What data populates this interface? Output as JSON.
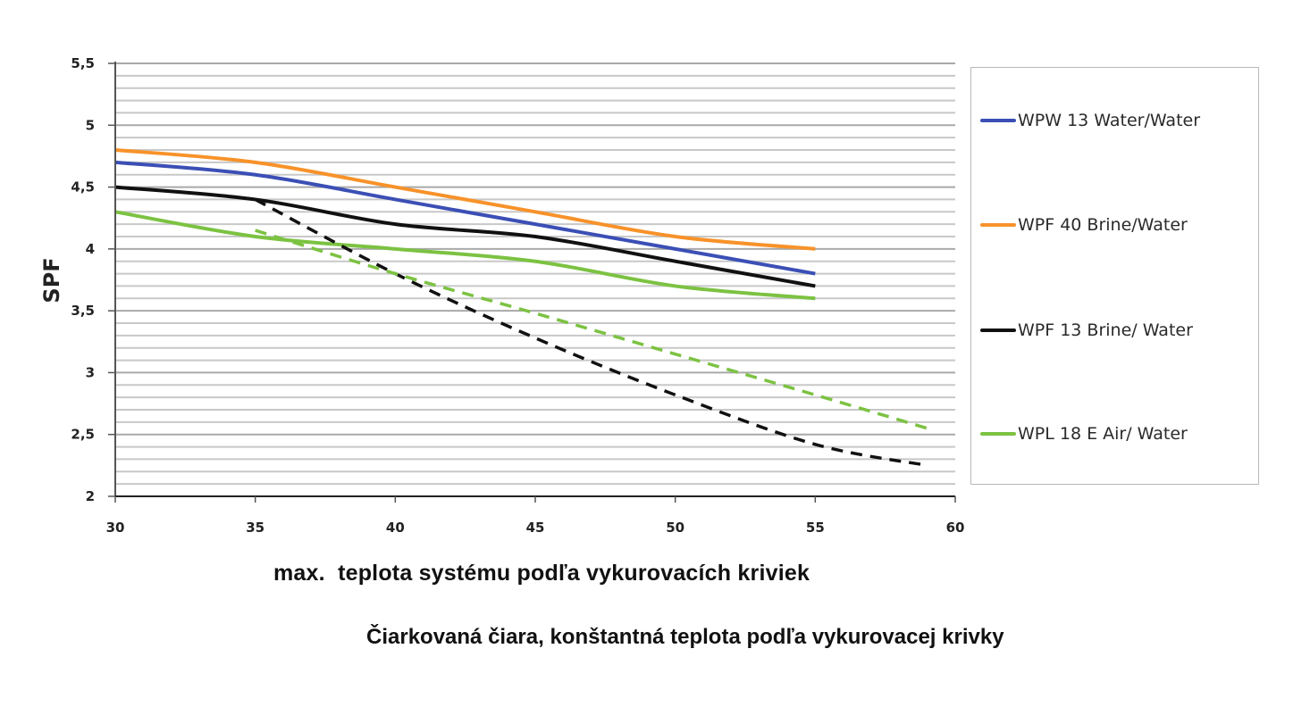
{
  "chart_data": {
    "type": "line",
    "title": "",
    "xlabel": "max.  teplota systému podľa vykurovacích kriviek",
    "ylabel": "SPF",
    "note": "Čiarkovaná čiara, konštantná teplota podľa vykurovacej krivky",
    "xlim": [
      30,
      60
    ],
    "ylim": [
      2,
      5.5
    ],
    "x_ticks": [
      "30",
      "35",
      "40",
      "45",
      "50",
      "55",
      "60"
    ],
    "y_ticks": [
      "2",
      "2,5",
      "3",
      "3,5",
      "4",
      "4,5",
      "5",
      "5,5"
    ],
    "grid": {
      "horizontal_minor_step": 0.1,
      "vertical": false
    },
    "legend_position": "right",
    "series": [
      {
        "name": "WPW 13 Water/Water",
        "color": "#3b4fb5",
        "style": "solid",
        "x": [
          30,
          35,
          40,
          45,
          50,
          55
        ],
        "values": [
          4.7,
          4.6,
          4.4,
          4.2,
          4.0,
          3.8
        ]
      },
      {
        "name": "WPF 40 Brine/Water",
        "color": "#f7922a",
        "style": "solid",
        "x": [
          30,
          35,
          40,
          45,
          50,
          55
        ],
        "values": [
          4.8,
          4.7,
          4.5,
          4.3,
          4.1,
          4.0
        ]
      },
      {
        "name": "WPF 13 Brine/ Water",
        "color": "#111111",
        "style": "solid",
        "x": [
          30,
          35,
          40,
          45,
          50,
          55
        ],
        "values": [
          4.5,
          4.4,
          4.2,
          4.1,
          3.9,
          3.7
        ]
      },
      {
        "name": "WPL 18 E Air/ Water",
        "color": "#7cc242",
        "style": "solid",
        "x": [
          30,
          35,
          40,
          45,
          50,
          55
        ],
        "values": [
          4.3,
          4.1,
          4.0,
          3.9,
          3.7,
          3.6
        ]
      },
      {
        "name": "WPF 13 Brine/ Water (constant temperature)",
        "color": "#111111",
        "style": "dashed",
        "in_legend": false,
        "x": [
          35,
          40,
          45,
          50,
          55,
          59
        ],
        "values": [
          4.4,
          3.8,
          3.28,
          2.82,
          2.42,
          2.25
        ]
      },
      {
        "name": "WPL 18 E Air/ Water (constant temperature)",
        "color": "#7cc242",
        "style": "dashed",
        "in_legend": false,
        "x": [
          35,
          40,
          45,
          50,
          55,
          59
        ],
        "values": [
          4.15,
          3.8,
          3.48,
          3.15,
          2.82,
          2.55
        ]
      }
    ]
  },
  "legend": {
    "items": [
      {
        "label": "WPW 13 Water/Water",
        "color": "#3b4fb5"
      },
      {
        "label": "WPF 40 Brine/Water",
        "color": "#f7922a"
      },
      {
        "label": "WPF 13 Brine/ Water",
        "color": "#111111"
      },
      {
        "label": "WPL 18 E Air/ Water",
        "color": "#7cc242"
      }
    ]
  }
}
